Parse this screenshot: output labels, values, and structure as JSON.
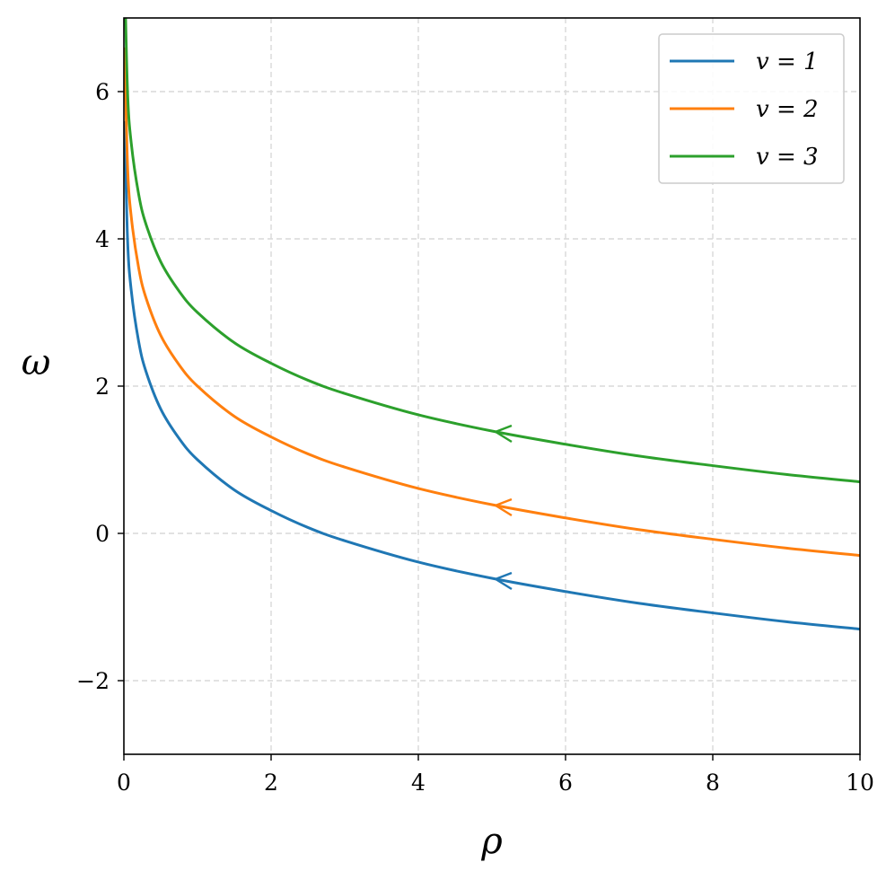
{
  "chart_data": {
    "type": "line",
    "xlabel": "ρ",
    "ylabel": "ω",
    "xlim": [
      0,
      10
    ],
    "ylim": [
      -3,
      7
    ],
    "xticks": [
      0,
      2,
      4,
      6,
      8,
      10
    ],
    "yticks": [
      -2,
      0,
      2,
      4,
      6
    ],
    "xtick_labels": [
      "0",
      "2",
      "4",
      "6",
      "8",
      "10"
    ],
    "ytick_labels": [
      "−2",
      "0",
      "2",
      "4",
      "6"
    ],
    "grid": true,
    "legend_position": "top-right",
    "series": [
      {
        "name": "v = 1",
        "color": "#1f77b4",
        "x": [
          0.01,
          0.05,
          0.1,
          0.2,
          0.3,
          0.5,
          0.75,
          1,
          1.5,
          2,
          2.5,
          3,
          4,
          5,
          6,
          7,
          8,
          9,
          10
        ],
        "y": [
          5.6,
          3.99,
          3.3,
          2.61,
          2.2,
          1.69,
          1.29,
          1.0,
          0.59,
          0.31,
          0.08,
          -0.1,
          -0.39,
          -0.61,
          -0.79,
          -0.95,
          -1.08,
          -1.2,
          -1.3
        ],
        "arrow_at": {
          "x": 5.05,
          "y": -0.62
        }
      },
      {
        "name": "v = 2",
        "color": "#ff7f0e",
        "x": [
          0.01,
          0.05,
          0.1,
          0.2,
          0.3,
          0.5,
          0.75,
          1,
          1.5,
          2,
          2.5,
          3,
          4,
          5,
          6,
          7,
          8,
          9,
          10
        ],
        "y": [
          6.6,
          4.99,
          4.3,
          3.61,
          3.2,
          2.69,
          2.29,
          2.0,
          1.59,
          1.31,
          1.08,
          0.9,
          0.61,
          0.39,
          0.21,
          0.05,
          -0.08,
          -0.2,
          -0.3
        ],
        "arrow_at": {
          "x": 5.05,
          "y": 0.38
        }
      },
      {
        "name": "v = 3",
        "color": "#2ca02c",
        "x": [
          0.01,
          0.05,
          0.1,
          0.2,
          0.3,
          0.5,
          0.75,
          1,
          1.5,
          2,
          2.5,
          3,
          4,
          5,
          6,
          7,
          8,
          9,
          10
        ],
        "y": [
          7.6,
          5.99,
          5.3,
          4.61,
          4.2,
          3.69,
          3.29,
          3.0,
          2.59,
          2.31,
          2.08,
          1.9,
          1.61,
          1.39,
          1.21,
          1.05,
          0.92,
          0.8,
          0.7
        ],
        "arrow_at": {
          "x": 5.05,
          "y": 1.38
        }
      }
    ]
  }
}
